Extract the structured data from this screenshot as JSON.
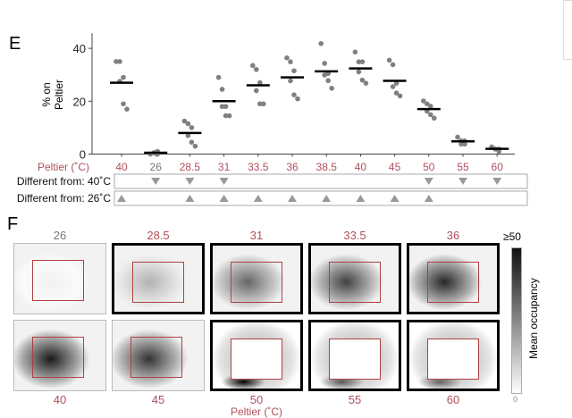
{
  "panel_e_label": "E",
  "panel_f_label": "F",
  "colors": {
    "temp_label": "#b0505c",
    "control_label": "#777777",
    "points": "#808080",
    "mean": "#000000",
    "triangle": "#999999",
    "roi": "#b04040"
  },
  "chart_data": {
    "type": "scatter",
    "ylabel": "% on Peltier",
    "xlabel": "Peltier (˚C)",
    "ylim": [
      0,
      45
    ],
    "yticks": [
      0,
      20,
      40
    ],
    "categories": [
      "40",
      "26",
      "28.5",
      "31",
      "33.5",
      "36",
      "38.5",
      "40",
      "45",
      "50",
      "55",
      "60"
    ],
    "means": [
      27,
      0.5,
      8,
      20,
      26,
      29,
      31.3,
      32.4,
      27.7,
      17,
      4.8,
      2
    ],
    "points": [
      [
        35,
        35,
        29,
        27.5,
        19,
        17
      ],
      [
        0,
        0.5,
        1,
        0.5,
        0
      ],
      [
        12.5,
        11.5,
        10,
        7,
        4.5,
        3
      ],
      [
        29,
        24.5,
        18,
        18,
        14.5,
        14.5
      ],
      [
        33.5,
        32,
        27,
        24,
        19,
        19
      ],
      [
        36.4,
        34.9,
        31.5,
        27.7,
        22.4,
        20.9
      ],
      [
        41.8,
        34.3,
        30.5,
        29.9,
        27.8,
        24.9
      ],
      [
        38.6,
        34.9,
        34.9,
        31.1,
        28,
        26.8
      ],
      [
        35.5,
        33.8,
        26.8,
        25.5,
        23.1,
        22
      ],
      [
        20.1,
        19,
        18.1,
        16.2,
        14.9,
        13.6
      ],
      [
        6.4,
        5,
        5,
        3.8,
        3.8
      ],
      [
        2.7,
        1.9,
        1.9,
        1.9,
        1
      ]
    ],
    "significance": [
      {
        "label": "Different from: 40˚C",
        "marker": "down",
        "flags": [
          false,
          true,
          true,
          true,
          false,
          false,
          false,
          false,
          false,
          true,
          true,
          true
        ]
      },
      {
        "label": "Different from: 26˚C",
        "marker": "up",
        "flags": [
          true,
          false,
          true,
          true,
          true,
          true,
          true,
          true,
          true,
          true,
          false,
          false
        ]
      }
    ]
  },
  "heatmaps": {
    "panels": [
      {
        "label": "26",
        "significant": false,
        "occupancy": 0.05,
        "control": true
      },
      {
        "label": "28.5",
        "significant": true,
        "occupancy": 0.3
      },
      {
        "label": "31",
        "significant": true,
        "occupancy": 0.6
      },
      {
        "label": "33.5",
        "significant": true,
        "occupancy": 0.75
      },
      {
        "label": "36",
        "significant": true,
        "occupancy": 0.85
      },
      {
        "label": "40",
        "significant": false,
        "occupancy": 0.9
      },
      {
        "label": "45",
        "significant": false,
        "occupancy": 0.8
      },
      {
        "label": "50",
        "significant": true,
        "occupancy": 0.5
      },
      {
        "label": "55",
        "significant": true,
        "occupancy": 0.1
      },
      {
        "label": "60",
        "significant": true,
        "occupancy": 0.05
      }
    ],
    "colorbar": {
      "title": "Mean occupancy",
      "max_label": "≥50",
      "min_label": "0"
    },
    "xlabel": "Peltier (˚C)"
  }
}
